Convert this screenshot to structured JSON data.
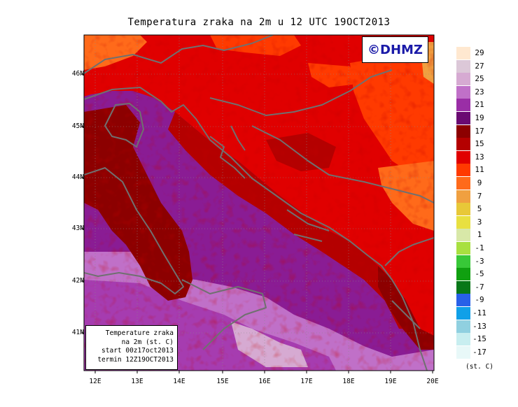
{
  "title": "Temperatura zraka na 2m u 12 UTC 19OCT2013",
  "copyright": "©DHMZ",
  "info_box": {
    "line1": "Temperature zraka",
    "line2": "na 2m (st. C)",
    "line3": "start 00z17oct2013",
    "line4": "termin 12Z19OCT2013"
  },
  "lat_labels": [
    "46N",
    "45N",
    "44N",
    "43N",
    "42N",
    "41N"
  ],
  "lon_labels": [
    "12E",
    "13E",
    "14E",
    "15E",
    "16E",
    "17E",
    "18E",
    "19E",
    "20E"
  ],
  "legend": {
    "labels": [
      "29",
      "27",
      "25",
      "23",
      "21",
      "19",
      "17",
      "15",
      "13",
      "11",
      "9",
      "7",
      "5",
      "3",
      "1",
      "-1",
      "-3",
      "-5",
      "-7",
      "-9",
      "-11",
      "-13",
      "-15",
      "-17"
    ],
    "colors": [
      "#ffe8d0",
      "#dcc8d8",
      "#d6aad2",
      "#c070c8",
      "#9a2ea6",
      "#6a0a72",
      "#8c0000",
      "#b40000",
      "#e00000",
      "#ff3a00",
      "#ff6a1a",
      "#f0a040",
      "#e8c838",
      "#e8e040",
      "#d8e8a8",
      "#a8e040",
      "#38c838",
      "#10a010",
      "#087818",
      "#2860e8",
      "#10a0e8",
      "#90d0e0",
      "#c8eef0",
      "#e8f8f8"
    ],
    "unit": "(st. C)"
  }
}
